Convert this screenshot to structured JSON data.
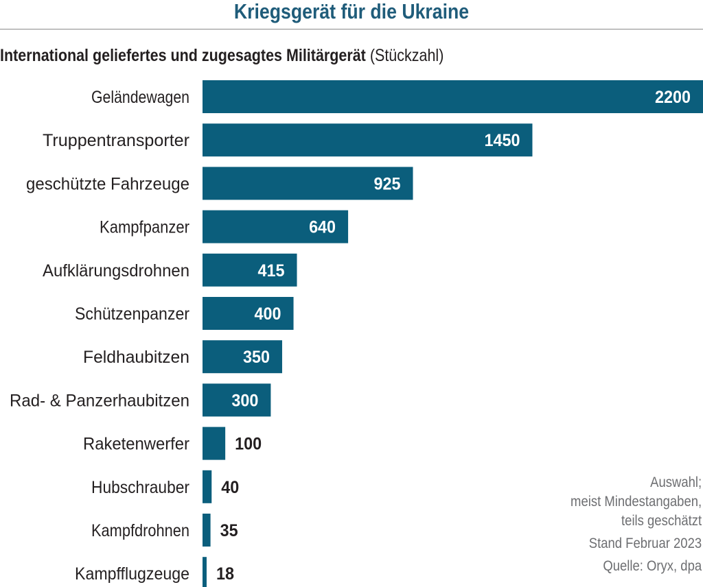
{
  "chart_data": {
    "type": "bar",
    "orientation": "horizontal",
    "title": "Kriegsgerät für die Ukraine",
    "subtitle_bold": "International geliefertes und zugesagtes Militärgerät",
    "subtitle_normal": "(Stückzahl)",
    "categories": [
      "Geländewagen",
      "Truppentransporter",
      "geschützte Fahrzeuge",
      "Kampfpanzer",
      "Aufklärungsdrohnen",
      "Schützenpanzer",
      "Feldhaubitzen",
      "Rad- & Panzerhaubitzen",
      "Raketenwerfer",
      "Hubschrauber",
      "Kampfdrohnen",
      "Kampfflugzeuge"
    ],
    "values": [
      2200,
      1450,
      925,
      640,
      415,
      400,
      350,
      300,
      100,
      40,
      35,
      18
    ],
    "xlim": [
      0,
      2200
    ],
    "bar_color": "#0b5e7c",
    "grid": false,
    "notes": {
      "line1": "Auswahl;",
      "line2": "meist Mindestangaben,",
      "line3": "teils geschätzt",
      "stand": "Stand Februar 2023",
      "source": "Quelle: Oryx, dpa"
    }
  }
}
